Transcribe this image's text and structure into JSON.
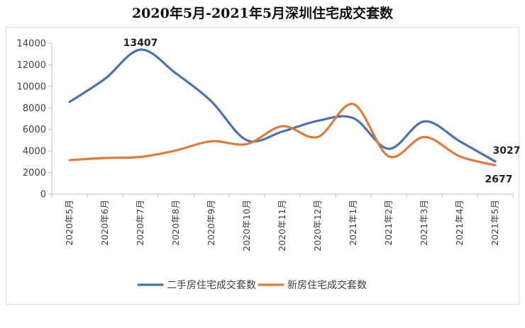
{
  "chart_data": {
    "type": "line",
    "title": "2020年5月-2021年5月深圳住宅成交套数",
    "categories": [
      "2020年5月",
      "2020年6月",
      "2020年7月",
      "2020年8月",
      "2020年9月",
      "2020年10月",
      "2020年11月",
      "2020年12月",
      "2021年1月",
      "2021年2月",
      "2021年3月",
      "2021年4月",
      "2021年5月"
    ],
    "ylim": [
      0,
      14000
    ],
    "yticks": [
      0,
      2000,
      4000,
      6000,
      8000,
      10000,
      12000,
      14000
    ],
    "grid": false,
    "legend_position": "bottom",
    "series": [
      {
        "name": "二手房住宅成交套数",
        "color": "#4A72B0",
        "values": [
          8550,
          10700,
          13407,
          11200,
          8600,
          5000,
          5800,
          6800,
          7050,
          4200,
          6750,
          4900,
          3027
        ]
      },
      {
        "name": "新房住宅成交套数",
        "color": "#E07B39",
        "values": [
          3150,
          3350,
          3450,
          4050,
          4900,
          4650,
          6300,
          5300,
          8350,
          3500,
          5300,
          3500,
          2677
        ]
      }
    ],
    "data_labels": [
      {
        "series": 0,
        "index": 2,
        "text": "13407",
        "position": "above"
      },
      {
        "series": 0,
        "index": 12,
        "text": "3027",
        "position": "above-right"
      },
      {
        "series": 1,
        "index": 12,
        "text": "2677",
        "position": "below"
      }
    ]
  }
}
